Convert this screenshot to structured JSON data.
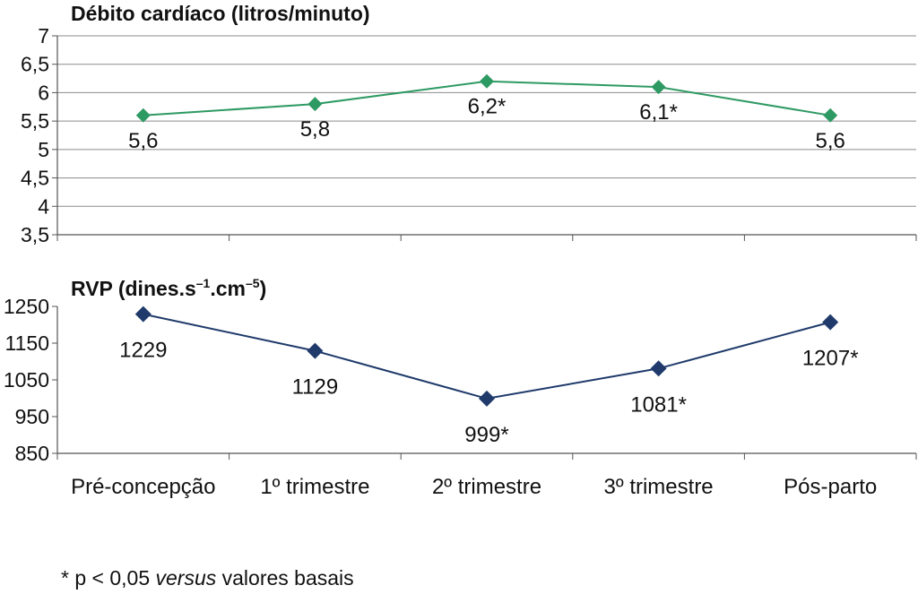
{
  "chart_data": [
    {
      "type": "line",
      "title": "Débito cardíaco (litros/minuto)",
      "categories": [
        "Pré-concepção",
        "1º trimestre",
        "2º trimestre",
        "3º trimestre",
        "Pós-parto"
      ],
      "values": [
        5.6,
        5.8,
        6.2,
        6.1,
        5.6
      ],
      "data_labels": [
        "5,6",
        "5,8",
        "6,2*",
        "6,1*",
        "5,6"
      ],
      "yticks": [
        "7",
        "6,5",
        "6",
        "5,5",
        "5",
        "4,5",
        "4",
        "3,5"
      ],
      "ylim": [
        3.5,
        7
      ],
      "color": "#2e9a63",
      "grid": true
    },
    {
      "type": "line",
      "title_main": "RVP (dines.s",
      "title_sup1": "–1",
      "title_mid": ".cm",
      "title_sup2": "–5",
      "title_end": ")",
      "categories": [
        "Pré-concepção",
        "1º trimestre",
        "2º trimestre",
        "3º trimestre",
        "Pós-parto"
      ],
      "values": [
        1229,
        1129,
        999,
        1081,
        1207
      ],
      "data_labels": [
        "1229",
        "1129",
        "999*",
        "1081*",
        "1207*"
      ],
      "yticks": [
        "1250",
        "1150",
        "1050",
        "950",
        "850"
      ],
      "ylim": [
        850,
        1250
      ],
      "color": "#1f3a6b",
      "grid": false
    }
  ],
  "footnote": {
    "prefix": "* p < 0,05 ",
    "italic": "versus",
    "suffix": " valores basais"
  }
}
